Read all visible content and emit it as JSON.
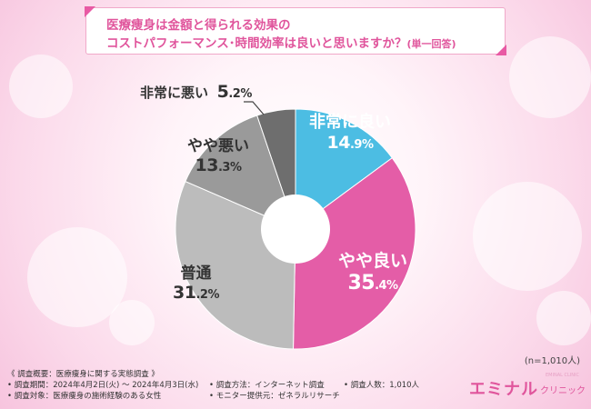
{
  "title": {
    "line1": "医療痩身は金額と得られる効果の",
    "line2": "コストパフォーマンス･時間効率は良いと思いますか？",
    "suffix": "(単一回答)"
  },
  "chart_data": {
    "type": "pie",
    "donut": true,
    "start_angle_deg": 0,
    "direction": "clockwise",
    "unit": "%",
    "slices": [
      {
        "label": "非常に良い",
        "value": 14.9,
        "color": "#4cbde3"
      },
      {
        "label": "やや良い",
        "value": 35.4,
        "color": "#e45da7"
      },
      {
        "label": "普通",
        "value": 31.2,
        "color": "#bcbcbc"
      },
      {
        "label": "やや悪い",
        "value": 13.3,
        "color": "#9a9a9a"
      },
      {
        "label": "非常に悪い",
        "value": 5.2,
        "color": "#6e6e6e"
      }
    ],
    "labels_display": {
      "good": {
        "name": "非常に良い",
        "int": "14",
        "dec": ".9",
        "unit": "%"
      },
      "slight_good": {
        "name": "やや良い",
        "int": "35",
        "dec": ".4",
        "unit": "%"
      },
      "normal": {
        "name": "普通",
        "int": "31",
        "dec": ".2",
        "unit": "%"
      },
      "slight_bad": {
        "name": "やや悪い",
        "int": "13",
        "dec": ".3",
        "unit": "%"
      },
      "bad": {
        "name": "非常に悪い",
        "int": "5",
        "dec": ".2",
        "unit": "%"
      }
    },
    "sample_note": "(n=1,010人)"
  },
  "survey": {
    "summary": "《 調査概要：医療痩身に関する実態調査 》",
    "period": "• 調査期間：2024年4月2日(火) ～ 2024年4月3日(水)",
    "target": "• 調査対象：医療痩身の施術経験のある女性",
    "method": "• 調査方法：インターネット調査",
    "provider": "• モニター提供元：ゼネラルリサーチ",
    "people": "• 調査人数：1,010人"
  },
  "brand": {
    "main": "エミナル",
    "sub": "クリニック",
    "tiny": "EMINAL CLINIC"
  }
}
